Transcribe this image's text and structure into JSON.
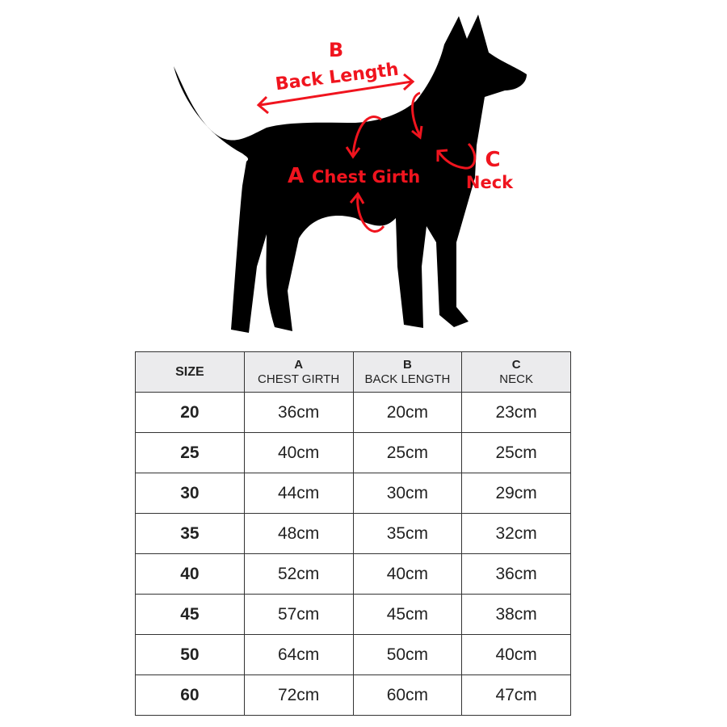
{
  "diagram": {
    "b_letter": "B",
    "b_label": "Back Length",
    "a_letter": "A",
    "a_label": "Chest Girth",
    "c_letter": "C",
    "c_label": "Neck",
    "accent_color": "#f0141e"
  },
  "table": {
    "headers": [
      {
        "letter": "",
        "label": "SIZE"
      },
      {
        "letter": "A",
        "label": "CHEST GIRTH"
      },
      {
        "letter": "B",
        "label": "BACK LENGTH"
      },
      {
        "letter": "C",
        "label": "NECK"
      }
    ],
    "rows": [
      [
        "20",
        "36cm",
        "20cm",
        "23cm"
      ],
      [
        "25",
        "40cm",
        "25cm",
        "25cm"
      ],
      [
        "30",
        "44cm",
        "30cm",
        "29cm"
      ],
      [
        "35",
        "48cm",
        "35cm",
        "32cm"
      ],
      [
        "40",
        "52cm",
        "40cm",
        "36cm"
      ],
      [
        "45",
        "57cm",
        "45cm",
        "38cm"
      ],
      [
        "50",
        "64cm",
        "50cm",
        "40cm"
      ],
      [
        "60",
        "72cm",
        "60cm",
        "47cm"
      ]
    ]
  }
}
